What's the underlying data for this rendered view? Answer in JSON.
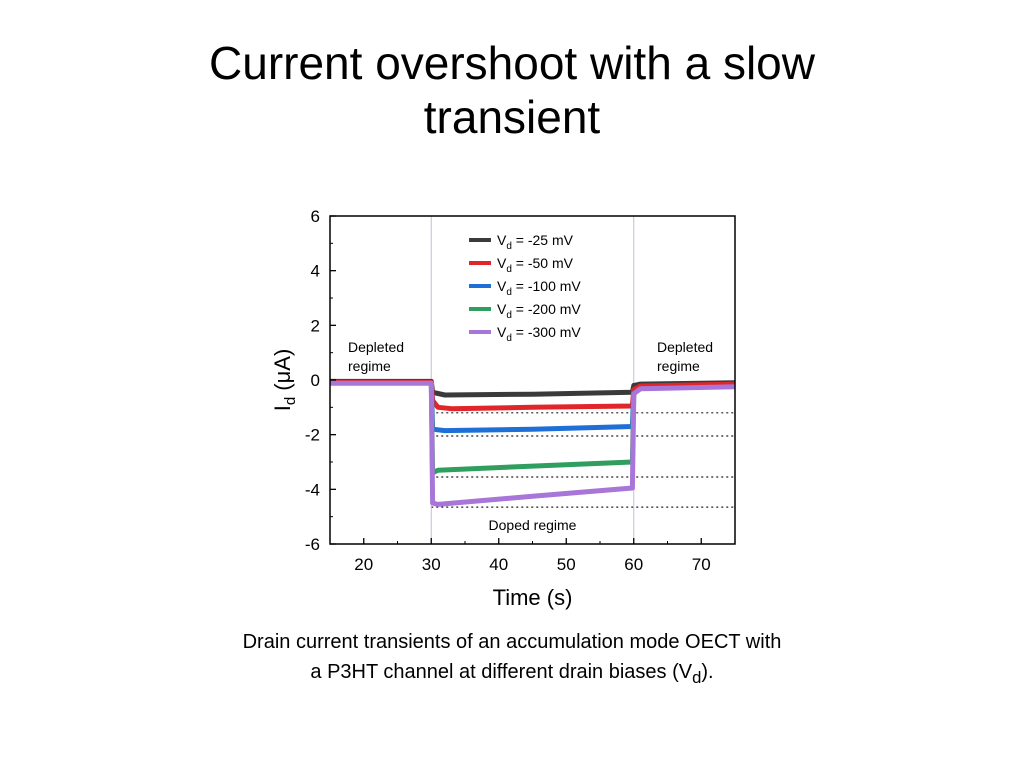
{
  "slide": {
    "title_lines": [
      "Current overshoot with a slow",
      "transient"
    ],
    "caption_line1": "Drain current transients of an accumulation mode OECT with",
    "caption_line2_pre": "a P3HT channel at different drain biases (V",
    "caption_line2_sub": "d",
    "caption_line2_post": ")."
  },
  "chart_data": {
    "type": "line",
    "xlabel": "Time (s)",
    "ylabel_main": "I",
    "ylabel_sub": "d",
    "ylabel_unit": "(μA)",
    "xlim": [
      15,
      75
    ],
    "ylim": [
      -6,
      6
    ],
    "xticks": [
      20,
      30,
      40,
      50,
      60,
      70
    ],
    "yticks": [
      6,
      4,
      2,
      0,
      -2,
      -4,
      -6
    ],
    "legend_position": "top-center",
    "annotations": {
      "left": [
        "Depleted",
        "regime"
      ],
      "right": [
        "Depleted",
        "regime"
      ],
      "bottom": "Doped regime"
    },
    "reference_lines_y": [
      -1.2,
      -2.05,
      -3.55,
      -4.65
    ],
    "series": [
      {
        "name_main": "V",
        "name_sub": "d",
        "name_rest": " = -25 mV",
        "color": "#3a3a3a",
        "points": [
          [
            15,
            -0.05
          ],
          [
            30,
            -0.05
          ],
          [
            30.2,
            -0.45
          ],
          [
            32,
            -0.55
          ],
          [
            45,
            -0.52
          ],
          [
            59.8,
            -0.45
          ],
          [
            60,
            -0.2
          ],
          [
            61,
            -0.15
          ],
          [
            75,
            -0.1
          ]
        ]
      },
      {
        "name_main": "V",
        "name_sub": "d",
        "name_rest": " = -50 mV",
        "color": "#e0262a",
        "points": [
          [
            15,
            -0.08
          ],
          [
            30,
            -0.08
          ],
          [
            30.2,
            -0.75
          ],
          [
            31,
            -1.0
          ],
          [
            33,
            -1.05
          ],
          [
            45,
            -1.0
          ],
          [
            59.8,
            -0.95
          ],
          [
            60,
            -0.35
          ],
          [
            61,
            -0.22
          ],
          [
            75,
            -0.15
          ]
        ]
      },
      {
        "name_main": "V",
        "name_sub": "d",
        "name_rest": " = -100 mV",
        "color": "#1f6fd6",
        "points": [
          [
            30,
            -0.1
          ],
          [
            30.2,
            -1.8
          ],
          [
            32,
            -1.85
          ],
          [
            45,
            -1.8
          ],
          [
            59.8,
            -1.7
          ],
          [
            60,
            -0.4
          ]
        ]
      },
      {
        "name_main": "V",
        "name_sub": "d",
        "name_rest": " = -200 mV",
        "color": "#2f9e5e",
        "points": [
          [
            30,
            -0.12
          ],
          [
            30.2,
            -3.4
          ],
          [
            31,
            -3.3
          ],
          [
            45,
            -3.15
          ],
          [
            59.8,
            -3.0
          ],
          [
            60,
            -0.45
          ]
        ]
      },
      {
        "name_main": "V",
        "name_sub": "d",
        "name_rest": " = -300 mV",
        "color": "#a875d8",
        "points": [
          [
            15,
            -0.12
          ],
          [
            30,
            -0.12
          ],
          [
            30.2,
            -4.5
          ],
          [
            31,
            -4.55
          ],
          [
            45,
            -4.25
          ],
          [
            59.8,
            -3.95
          ],
          [
            60,
            -0.5
          ],
          [
            61,
            -0.32
          ],
          [
            75,
            -0.25
          ]
        ]
      }
    ]
  }
}
